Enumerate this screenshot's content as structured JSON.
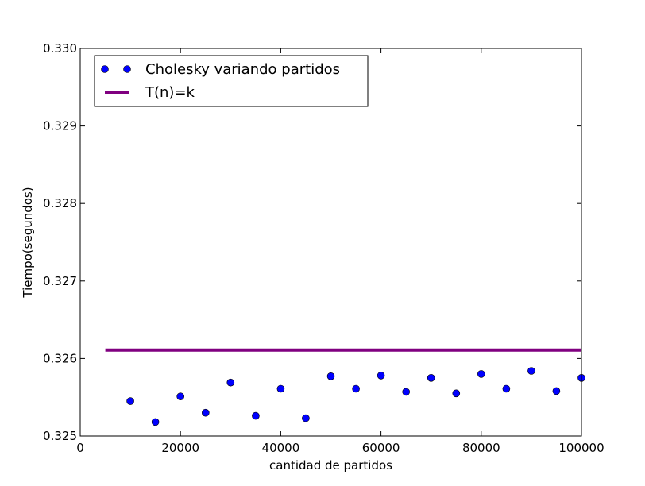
{
  "chart_data": {
    "type": "scatter",
    "title": "",
    "xlabel": "cantidad de partidos",
    "ylabel": "Tiempo(segundos)",
    "xlim": [
      0,
      100000
    ],
    "ylim": [
      0.325,
      0.33
    ],
    "xticks": [
      0,
      20000,
      40000,
      60000,
      80000,
      100000
    ],
    "yticks": [
      0.325,
      0.326,
      0.327,
      0.328,
      0.329,
      0.33
    ],
    "xtick_labels": [
      "0",
      "20000",
      "40000",
      "60000",
      "80000",
      "100000"
    ],
    "ytick_labels": [
      "0.325",
      "0.326",
      "0.327",
      "0.328",
      "0.329",
      "0.330"
    ],
    "grid": false,
    "legend_position": "top-left",
    "series": [
      {
        "name": "Cholesky variando partidos",
        "kind": "markers",
        "color": "#0000ff",
        "x": [
          10000,
          15000,
          20000,
          25000,
          30000,
          35000,
          40000,
          45000,
          50000,
          55000,
          60000,
          65000,
          70000,
          75000,
          80000,
          85000,
          90000,
          95000,
          100000
        ],
        "y": [
          0.32545,
          0.32518,
          0.32551,
          0.3253,
          0.32569,
          0.32526,
          0.32561,
          0.32523,
          0.32577,
          0.32561,
          0.32578,
          0.32557,
          0.32575,
          0.32555,
          0.3258,
          0.32561,
          0.32584,
          0.32558,
          0.32575
        ]
      },
      {
        "name": "T(n)=k",
        "kind": "line",
        "color": "#800080",
        "x": [
          5000,
          100000
        ],
        "y": [
          0.32611,
          0.32611
        ]
      }
    ]
  }
}
